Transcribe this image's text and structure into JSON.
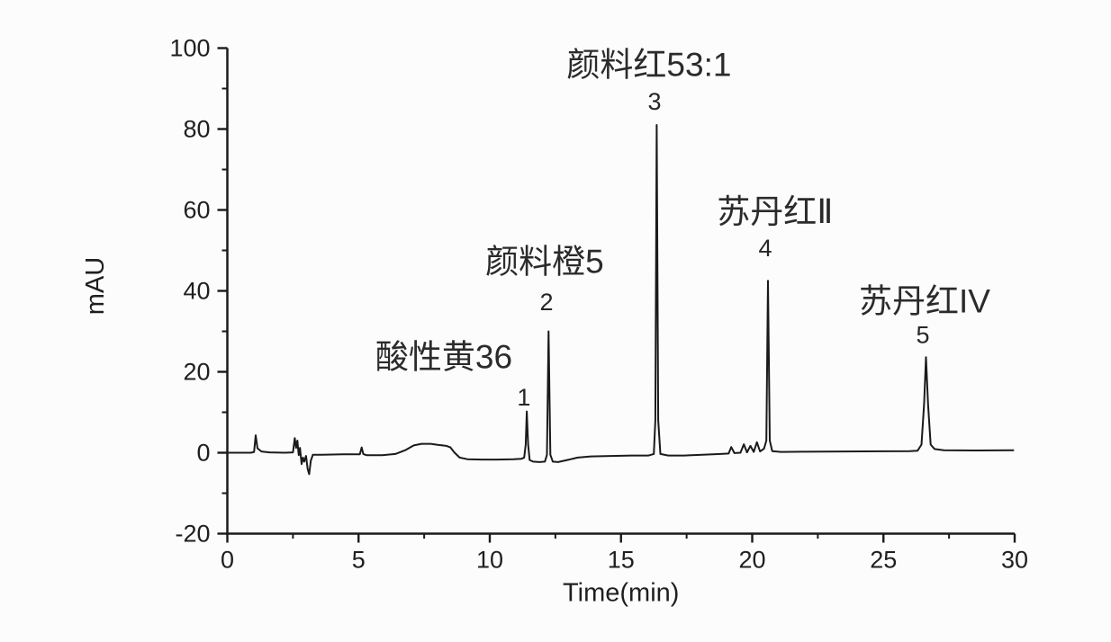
{
  "figure": {
    "background": "#fcfcfc",
    "axis_color": "#1a1a1a",
    "text_color": "#1f1f1f"
  },
  "chart_data": {
    "type": "line",
    "title": "",
    "xlabel": "Time(min)",
    "ylabel": "mAU",
    "xlim": [
      0,
      30
    ],
    "ylim": [
      -20,
      100
    ],
    "x_major_ticks": [
      0,
      5,
      10,
      15,
      20,
      25,
      30
    ],
    "x_minor_ticks": [
      2.5,
      7.5,
      12.5,
      17.5,
      22.5,
      27.5
    ],
    "y_major_ticks": [
      -20,
      0,
      20,
      40,
      60,
      80,
      100
    ],
    "y_minor_ticks": [
      -10,
      10,
      30,
      50,
      70,
      90
    ],
    "grid": false,
    "legend": null,
    "line_color": "#1a1a1a",
    "peaks": [
      {
        "number": "1",
        "name": "酸性黄36",
        "time_min": 11.41,
        "height_mau": 10.2,
        "label_t": 8.25,
        "label_mau": 23.7,
        "num_t": 11.3,
        "num_mau": 13.7
      },
      {
        "number": "2",
        "name": "颜料橙5",
        "time_min": 12.24,
        "height_mau": 30.0,
        "label_t": 12.09,
        "label_mau": 47.2,
        "num_t": 12.16,
        "num_mau": 37.2
      },
      {
        "number": "3",
        "name": "颜料红53:1",
        "time_min": 16.36,
        "height_mau": 81.0,
        "label_t": 16.07,
        "label_mau": 95.9,
        "num_t": 16.28,
        "num_mau": 86.8
      },
      {
        "number": "4",
        "name": "苏丹红Ⅱ",
        "time_min": 20.6,
        "height_mau": 42.5,
        "label_t": 20.87,
        "label_mau": 59.6,
        "num_t": 20.5,
        "num_mau": 50.6
      },
      {
        "number": "5",
        "name": "苏丹红IV",
        "time_min": 26.62,
        "height_mau": 23.6,
        "label_t": 26.57,
        "label_mau": 37.4,
        "num_t": 26.5,
        "num_mau": 29.1
      }
    ],
    "trace": [
      [
        0,
        0
      ],
      [
        0.9,
        0
      ],
      [
        1.02,
        0.2
      ],
      [
        1.08,
        4.3
      ],
      [
        1.15,
        1.1
      ],
      [
        1.3,
        0.3
      ],
      [
        1.6,
        0.1
      ],
      [
        2.2,
        0
      ],
      [
        2.5,
        0.1
      ],
      [
        2.57,
        3.6
      ],
      [
        2.62,
        1.2
      ],
      [
        2.67,
        3
      ],
      [
        2.72,
        -0.6
      ],
      [
        2.77,
        1.2
      ],
      [
        2.83,
        -2.8
      ],
      [
        2.88,
        -1.2
      ],
      [
        2.93,
        -2.2
      ],
      [
        3,
        -0.8
      ],
      [
        3.06,
        -4
      ],
      [
        3.12,
        -5.3
      ],
      [
        3.18,
        -2
      ],
      [
        3.26,
        -0.5
      ],
      [
        3.6,
        -0.5
      ],
      [
        4.4,
        -0.4
      ],
      [
        5.05,
        -0.4
      ],
      [
        5.12,
        1.3
      ],
      [
        5.18,
        -0.3
      ],
      [
        5.3,
        -0.6
      ],
      [
        5.9,
        -0.6
      ],
      [
        6.4,
        -0.3
      ],
      [
        6.8,
        0.7
      ],
      [
        7.1,
        1.8
      ],
      [
        7.4,
        2.2
      ],
      [
        7.75,
        2.2
      ],
      [
        8.05,
        1.9
      ],
      [
        8.35,
        1.7
      ],
      [
        8.5,
        1.3
      ],
      [
        8.65,
        0.1
      ],
      [
        8.85,
        -1.2
      ],
      [
        9.15,
        -1.6
      ],
      [
        9.7,
        -1.7
      ],
      [
        10.3,
        -1.7
      ],
      [
        10.9,
        -1.6
      ],
      [
        11.2,
        -1.5
      ],
      [
        11.31,
        -1.2
      ],
      [
        11.37,
        2
      ],
      [
        11.41,
        10.2
      ],
      [
        11.46,
        2
      ],
      [
        11.52,
        -1.8
      ],
      [
        11.65,
        -2.2
      ],
      [
        11.9,
        -2.3
      ],
      [
        12.1,
        -2.2
      ],
      [
        12.18,
        -0.5
      ],
      [
        12.24,
        30
      ],
      [
        12.31,
        -0.5
      ],
      [
        12.4,
        -2.2
      ],
      [
        12.6,
        -2.3
      ],
      [
        12.95,
        -1.8
      ],
      [
        13.35,
        -1.2
      ],
      [
        13.85,
        -0.9
      ],
      [
        14.6,
        -0.8
      ],
      [
        15.4,
        -0.7
      ],
      [
        16.05,
        -0.7
      ],
      [
        16.25,
        -0.3
      ],
      [
        16.31,
        8
      ],
      [
        16.36,
        81
      ],
      [
        16.42,
        8
      ],
      [
        16.5,
        -0.3
      ],
      [
        16.8,
        -0.7
      ],
      [
        17.4,
        -0.7
      ],
      [
        18.1,
        -0.5
      ],
      [
        18.8,
        -0.3
      ],
      [
        19.1,
        -0.2
      ],
      [
        19.2,
        1.4
      ],
      [
        19.32,
        -0.1
      ],
      [
        19.55,
        0
      ],
      [
        19.68,
        2.1
      ],
      [
        19.8,
        0.1
      ],
      [
        19.93,
        1.7
      ],
      [
        20.06,
        0.2
      ],
      [
        20.18,
        2.6
      ],
      [
        20.3,
        0.3
      ],
      [
        20.45,
        1
      ],
      [
        20.54,
        3
      ],
      [
        20.6,
        42.5
      ],
      [
        20.67,
        3
      ],
      [
        20.76,
        0.4
      ],
      [
        21.1,
        0.2
      ],
      [
        22,
        0.25
      ],
      [
        23.5,
        0.3
      ],
      [
        25,
        0.35
      ],
      [
        26,
        0.4
      ],
      [
        26.3,
        0.5
      ],
      [
        26.45,
        2
      ],
      [
        26.55,
        12
      ],
      [
        26.62,
        23.6
      ],
      [
        26.7,
        12
      ],
      [
        26.8,
        2
      ],
      [
        26.95,
        0.9
      ],
      [
        27.3,
        0.6
      ],
      [
        28.5,
        0.55
      ],
      [
        29.95,
        0.6
      ]
    ]
  }
}
